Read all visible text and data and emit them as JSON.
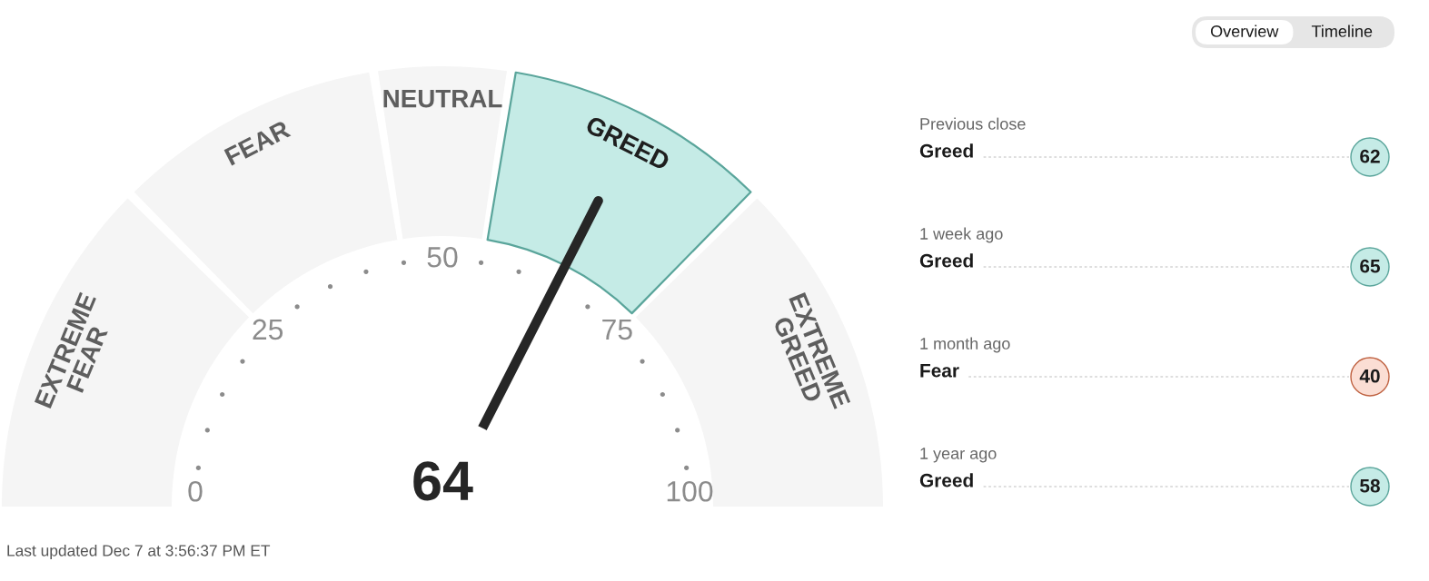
{
  "chart_data": [
    {
      "type": "donut",
      "categories": [
        "EXTREME FEAR",
        "FEAR",
        "NEUTRAL",
        "GREED",
        "EXTREME GREED"
      ],
      "values": [
        25,
        20,
        10,
        20,
        25
      ],
      "colors": [
        "#f5f5f5",
        "#f5f5f5",
        "#f5f5f5",
        "#c5ebe6",
        "#f5f5f5"
      ],
      "needle": "GREED",
      "annotations": [
        "64",
        "0",
        "25",
        "50",
        "75",
        "100",
        "Last updated Dec 7 at 3:56:37 PM ET"
      ]
    },
    {
      "type": "other",
      "categories": [
        "Overview",
        "Timeline"
      ],
      "colors": [
        "#ffffff",
        "#e6e6e6"
      ]
    },
    {
      "type": "other",
      "categories": [
        "Previous close",
        "1 week ago",
        "1 month ago",
        "1 year ago"
      ],
      "y2_categories": [
        "Greed",
        "Greed",
        "Fear",
        "Greed"
      ],
      "values": [
        62,
        65,
        40,
        58
      ],
      "colors": [
        "#c5ebe6",
        "#c5ebe6",
        "#fbded4",
        "#c5ebe6"
      ],
      "data_labels": true
    }
  ]
}
